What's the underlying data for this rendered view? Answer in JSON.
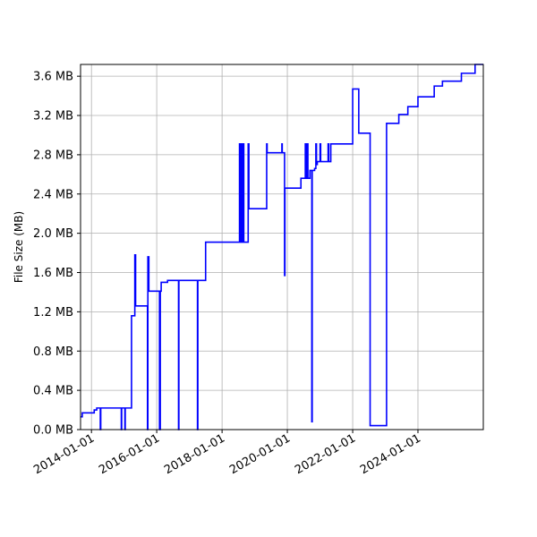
{
  "chart_data": {
    "type": "line",
    "title": "",
    "xlabel": "",
    "ylabel": "File Size (MB)",
    "grid": true,
    "line_color": "#0000ff",
    "x_type": "date",
    "xlim": [
      "2013-09-01",
      "2026-01-01"
    ],
    "ylim": [
      0,
      3.72
    ],
    "x_ticks": [
      "2014-01-01",
      "2016-01-01",
      "2018-01-01",
      "2020-01-01",
      "2022-01-01",
      "2024-01-01"
    ],
    "y_ticks": [
      {
        "value": 0.0,
        "label": "0.0 MB"
      },
      {
        "value": 0.4,
        "label": "0.4 MB"
      },
      {
        "value": 0.8,
        "label": "0.8 MB"
      },
      {
        "value": 1.2,
        "label": "1.2 MB"
      },
      {
        "value": 1.6,
        "label": "1.6 MB"
      },
      {
        "value": 2.0,
        "label": "2.0 MB"
      },
      {
        "value": 2.4,
        "label": "2.4 MB"
      },
      {
        "value": 2.8,
        "label": "2.8 MB"
      },
      {
        "value": 3.2,
        "label": "3.2 MB"
      },
      {
        "value": 3.6,
        "label": "3.6 MB"
      }
    ],
    "series": [
      {
        "step": "post",
        "points": [
          [
            "2013-09-01",
            0.13
          ],
          [
            "2013-09-20",
            0.17
          ],
          [
            "2014-02-01",
            0.2
          ],
          [
            "2014-03-01",
            0.22
          ],
          [
            "2014-04-10",
            0.0
          ],
          [
            "2014-04-15",
            0.22
          ],
          [
            "2014-12-01",
            0.0
          ],
          [
            "2014-12-05",
            0.22
          ],
          [
            "2015-01-10",
            0.0
          ],
          [
            "2015-01-14",
            0.22
          ],
          [
            "2015-03-25",
            1.16
          ],
          [
            "2015-05-01",
            1.78
          ],
          [
            "2015-05-10",
            1.26
          ],
          [
            "2015-09-20",
            0.0
          ],
          [
            "2015-09-24",
            1.76
          ],
          [
            "2015-10-05",
            1.41
          ],
          [
            "2016-02-01",
            0.0
          ],
          [
            "2016-02-10",
            1.41
          ],
          [
            "2016-02-20",
            1.5
          ],
          [
            "2016-05-01",
            1.52
          ],
          [
            "2016-09-01",
            0.0
          ],
          [
            "2016-09-05",
            1.52
          ],
          [
            "2017-04-01",
            0.0
          ],
          [
            "2017-04-05",
            1.52
          ],
          [
            "2017-07-01",
            1.91
          ],
          [
            "2018-07-15",
            2.91
          ],
          [
            "2018-07-25",
            1.91
          ],
          [
            "2018-08-01",
            2.91
          ],
          [
            "2018-08-15",
            1.91
          ],
          [
            "2018-08-25",
            2.91
          ],
          [
            "2018-09-01",
            1.91
          ],
          [
            "2018-10-20",
            2.91
          ],
          [
            "2018-10-28",
            2.25
          ],
          [
            "2019-05-15",
            2.91
          ],
          [
            "2019-05-20",
            2.82
          ],
          [
            "2019-11-01",
            2.91
          ],
          [
            "2019-11-05",
            2.82
          ],
          [
            "2019-12-01",
            1.57
          ],
          [
            "2019-12-05",
            2.46
          ],
          [
            "2020-06-01",
            2.56
          ],
          [
            "2020-07-20",
            2.91
          ],
          [
            "2020-07-28",
            2.56
          ],
          [
            "2020-08-10",
            2.91
          ],
          [
            "2020-08-18",
            2.56
          ],
          [
            "2020-09-10",
            2.64
          ],
          [
            "2020-10-01",
            0.08
          ],
          [
            "2020-10-05",
            2.64
          ],
          [
            "2020-11-01",
            2.66
          ],
          [
            "2020-11-15",
            2.91
          ],
          [
            "2020-11-22",
            2.7
          ],
          [
            "2020-12-01",
            2.73
          ],
          [
            "2021-01-01",
            2.91
          ],
          [
            "2021-01-08",
            2.73
          ],
          [
            "2021-04-01",
            2.91
          ],
          [
            "2021-04-08",
            2.73
          ],
          [
            "2021-05-01",
            2.91
          ],
          [
            "2022-01-01",
            3.47
          ],
          [
            "2022-03-10",
            3.02
          ],
          [
            "2022-07-15",
            0.04
          ],
          [
            "2023-01-15",
            3.12
          ],
          [
            "2023-06-01",
            3.21
          ],
          [
            "2023-09-10",
            3.29
          ],
          [
            "2024-01-01",
            3.39
          ],
          [
            "2024-07-01",
            3.5
          ],
          [
            "2024-10-01",
            3.55
          ],
          [
            "2025-05-01",
            3.63
          ],
          [
            "2025-10-01",
            3.72
          ],
          [
            "2026-01-01",
            3.72
          ]
        ]
      }
    ]
  }
}
